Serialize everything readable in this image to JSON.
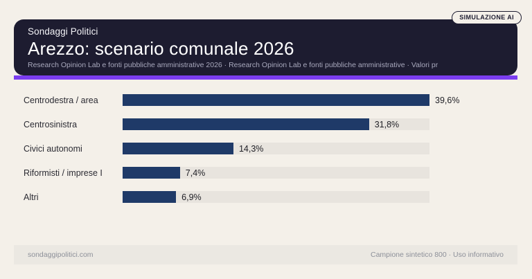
{
  "badge": {
    "label": "SIMULAZIONE AI"
  },
  "header": {
    "kicker": "Sondaggi Politici",
    "title": "Arezzo: scenario comunale 2026",
    "subtitle": "Research Opinion Lab e fonti pubbliche amministrative 2026 · Research Opinion Lab e fonti pubbliche amministrative · Valori pr"
  },
  "chart_data": {
    "type": "bar",
    "orientation": "horizontal",
    "title": "Arezzo: scenario comunale 2026",
    "categories": [
      "Centrodestra / area",
      "Centrosinistra",
      "Civici autonomi",
      "Riformisti / imprese I",
      "Altri"
    ],
    "values": [
      39.6,
      31.8,
      14.3,
      7.4,
      6.9
    ],
    "value_labels": [
      "39,6%",
      "31,8%",
      "14,3%",
      "7,4%",
      "6,9%"
    ],
    "unit": "%",
    "xlim": [
      0,
      39.6
    ],
    "grid": false,
    "legend": false,
    "bar_color": "#1f3a68",
    "track_color": "#e8e4de"
  },
  "footer": {
    "left": "sondaggipolitici.com",
    "right": "Campione sintetico 800 · Uso informativo"
  },
  "colors": {
    "background": "#f4f0e9",
    "header_card": "#1d1c30",
    "accent": "#7b3df0",
    "bar": "#1f3a68",
    "track": "#e8e4de",
    "footer_band": "#ebe8e2",
    "footer_text": "#8d9099",
    "subtitle_text": "#a9a9bd"
  }
}
